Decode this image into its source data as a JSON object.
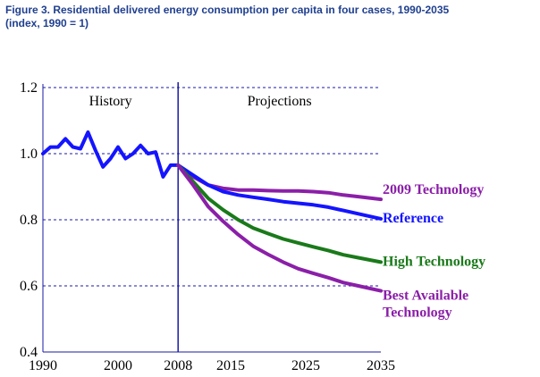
{
  "figure": {
    "title_line1": "Figure 3. Residential delivered energy consumption per capita in four cases, 1990-2035",
    "title_line2": "(index, 1990 = 1)"
  },
  "chart_data": {
    "type": "line",
    "xlim": [
      1990,
      2035
    ],
    "ylim": [
      0.4,
      1.2
    ],
    "x_ticks": [
      1990,
      2000,
      2008,
      2015,
      2025,
      2035
    ],
    "y_ticks": [
      "0.4",
      "0.6",
      "0.8",
      "1.0",
      "1.2"
    ],
    "grid": "horizontal dashed",
    "divider_year": 2008,
    "region_labels": {
      "history": "History",
      "projections": "Projections"
    },
    "colors": {
      "axis": "#1a1aa6",
      "grid": "#1a1aa6",
      "labels": "#000000"
    },
    "series": [
      {
        "key": "history",
        "color": "#1414ff",
        "x": [
          1990,
          1991,
          1992,
          1993,
          1994,
          1995,
          1996,
          1997,
          1998,
          1999,
          2000,
          2001,
          2002,
          2003,
          2004,
          2005,
          2006,
          2007,
          2008
        ],
        "y": [
          1.0,
          1.02,
          1.02,
          1.045,
          1.02,
          1.015,
          1.065,
          1.01,
          0.96,
          0.985,
          1.02,
          0.985,
          1.0,
          1.025,
          1.0,
          1.005,
          0.93,
          0.965,
          0.965
        ]
      },
      {
        "name": "2009 Technology",
        "color": "#8b1fa8",
        "x": [
          2008,
          2010,
          2012,
          2014,
          2016,
          2018,
          2020,
          2022,
          2024,
          2026,
          2028,
          2030,
          2032,
          2035
        ],
        "y": [
          0.965,
          0.93,
          0.905,
          0.895,
          0.89,
          0.89,
          0.888,
          0.887,
          0.887,
          0.885,
          0.882,
          0.875,
          0.87,
          0.862
        ]
      },
      {
        "name": "Reference",
        "color": "#1414ff",
        "x": [
          2008,
          2010,
          2012,
          2014,
          2016,
          2018,
          2020,
          2022,
          2024,
          2026,
          2028,
          2030,
          2032,
          2035
        ],
        "y": [
          0.965,
          0.935,
          0.905,
          0.885,
          0.875,
          0.868,
          0.862,
          0.855,
          0.85,
          0.845,
          0.838,
          0.828,
          0.818,
          0.803
        ]
      },
      {
        "name": "High Technology",
        "color": "#1a7a1a",
        "x": [
          2008,
          2010,
          2012,
          2014,
          2016,
          2018,
          2020,
          2022,
          2024,
          2026,
          2028,
          2030,
          2032,
          2035
        ],
        "y": [
          0.965,
          0.915,
          0.865,
          0.83,
          0.8,
          0.775,
          0.758,
          0.742,
          0.73,
          0.718,
          0.707,
          0.694,
          0.685,
          0.672
        ]
      },
      {
        "name": "Best Available Technology",
        "name_lines": [
          "Best Available",
          "Technology"
        ],
        "color": "#8b1fa8",
        "x": [
          2008,
          2010,
          2012,
          2014,
          2016,
          2018,
          2020,
          2022,
          2024,
          2026,
          2028,
          2030,
          2032,
          2035
        ],
        "y": [
          0.965,
          0.905,
          0.84,
          0.795,
          0.755,
          0.72,
          0.695,
          0.672,
          0.652,
          0.638,
          0.625,
          0.61,
          0.6,
          0.585
        ]
      }
    ]
  }
}
